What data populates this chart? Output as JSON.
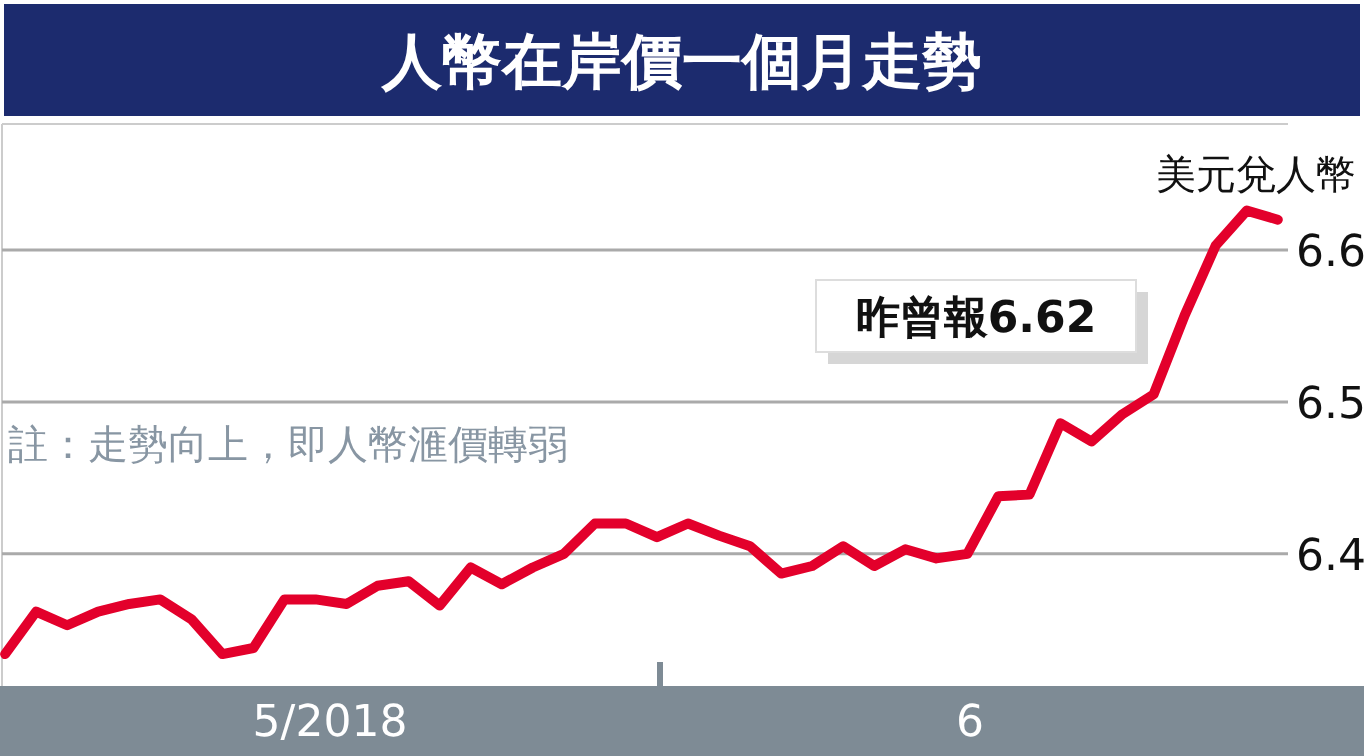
{
  "chart_data": {
    "type": "line",
    "title": "人幣在岸價一個月走勢",
    "categories": [
      null,
      null,
      null,
      null,
      null,
      null,
      null,
      null,
      null,
      null,
      null,
      null,
      null,
      null,
      null,
      null,
      null,
      null,
      null,
      null,
      null,
      null,
      null,
      null,
      null,
      null,
      null,
      null,
      null,
      null,
      null,
      null,
      null,
      null,
      null,
      null,
      null,
      null,
      null,
      null,
      null,
      null
    ],
    "series": [
      {
        "name": "美元兌人幣",
        "color": "#e3002b",
        "values": [
          6.334,
          6.362,
          6.353,
          6.362,
          6.367,
          6.37,
          6.357,
          6.334,
          6.338,
          6.37,
          6.37,
          6.367,
          6.379,
          6.382,
          6.366,
          6.391,
          6.38,
          6.391,
          6.4,
          6.42,
          6.42,
          6.411,
          6.42,
          6.412,
          6.405,
          6.387,
          6.392,
          6.405,
          6.392,
          6.403,
          6.397,
          6.4,
          6.438,
          6.439,
          6.486,
          6.474,
          6.492,
          6.505,
          6.557,
          6.603,
          6.626,
          6.62
        ]
      }
    ],
    "ylim": [
      6.313,
      6.683
    ],
    "yticks": [
      6.4,
      6.5,
      6.6
    ],
    "grid": "y",
    "annotations": [
      "昨曾報6.62",
      "註：走勢向上，即人幣滙價轉弱",
      "5/2018",
      "6"
    ]
  }
}
